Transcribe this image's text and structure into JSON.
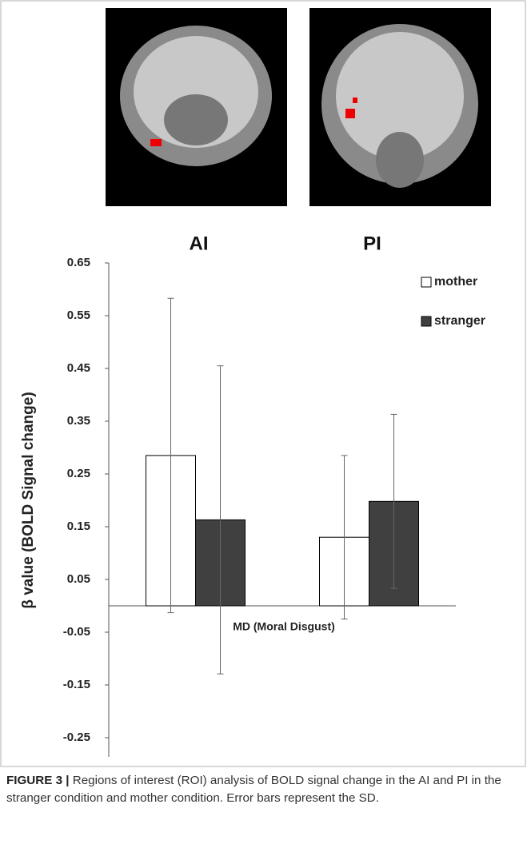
{
  "chart_data": {
    "type": "bar",
    "categories": [
      "AI",
      "PI"
    ],
    "x_label": "MD (Moral Disgust)",
    "y_label": "β value (BOLD Signal change)",
    "series": [
      {
        "name": "mother",
        "color": "#ffffff",
        "values": [
          0.285,
          0.13
        ],
        "errors": [
          0.298,
          0.155
        ]
      },
      {
        "name": "stranger",
        "color": "#404040",
        "values": [
          0.163,
          0.198
        ],
        "errors": [
          0.292,
          0.165
        ]
      }
    ],
    "ylim": [
      -0.25,
      0.65
    ],
    "yticks": [
      -0.25,
      -0.15,
      -0.05,
      0.05,
      0.15,
      0.25,
      0.35,
      0.45,
      0.55,
      0.65
    ],
    "legend": "top-right"
  },
  "caption": {
    "label": "FIGURE 3 |",
    "text": "Regions of interest (ROI) analysis of BOLD signal change in the AI and PI in the stranger condition and mother condition. Error bars represent the SD."
  }
}
